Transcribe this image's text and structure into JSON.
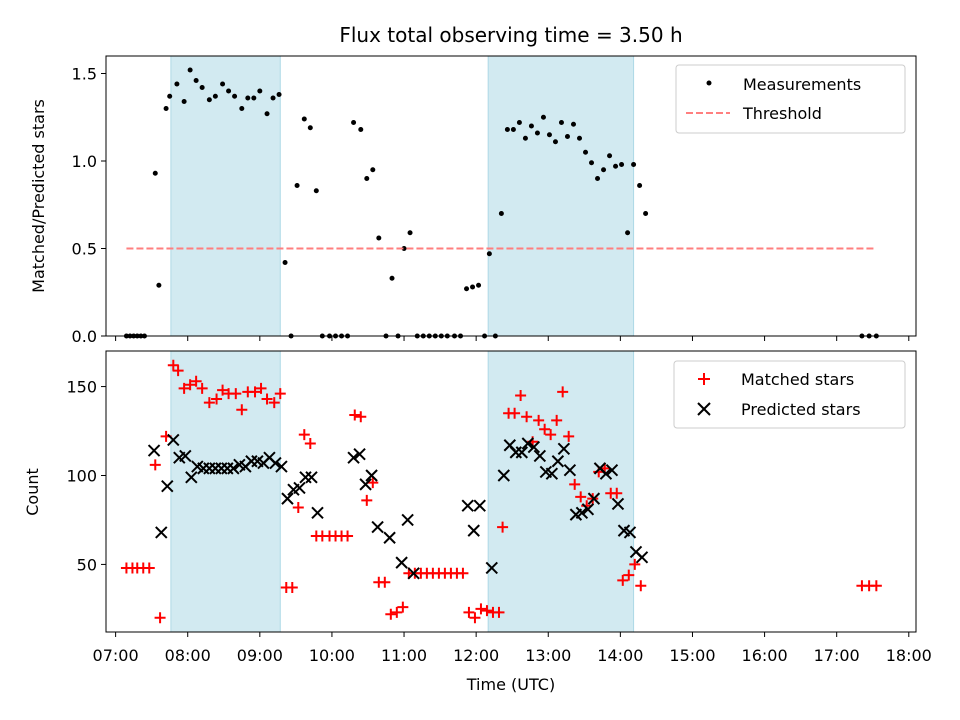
{
  "chart_data": [
    {
      "type": "scatter",
      "title": "Flux total observing time = 3.50 h",
      "xlabel": "",
      "ylabel": "Matched/Predicted stars",
      "xlim": [
        "06:52",
        "18:06"
      ],
      "ylim": [
        0,
        1.6
      ],
      "yticks": [
        0.0,
        0.5,
        1.0,
        1.5
      ],
      "ytick_labels": [
        "0.0",
        "0.5",
        "1.0",
        "1.5"
      ],
      "grid": false,
      "legend_position": "upper right",
      "shaded_intervals": [
        [
          "07:46",
          "09:17"
        ],
        [
          "12:10",
          "14:11"
        ]
      ],
      "shade_color": "#add8e6",
      "series": [
        {
          "name": "Measurements",
          "style": "dot",
          "color": "#000000",
          "points": [
            [
              "07:09",
              0
            ],
            [
              "07:12",
              0
            ],
            [
              "07:15",
              0
            ],
            [
              "07:18",
              0
            ],
            [
              "07:21",
              0
            ],
            [
              "07:24",
              0
            ],
            [
              "07:33",
              0.93
            ],
            [
              "07:36",
              0.29
            ],
            [
              "07:42",
              1.3
            ],
            [
              "07:45",
              1.37
            ],
            [
              "07:51",
              1.44
            ],
            [
              "07:57",
              1.34
            ],
            [
              "08:02",
              1.52
            ],
            [
              "08:07",
              1.46
            ],
            [
              "08:12",
              1.42
            ],
            [
              "08:18",
              1.35
            ],
            [
              "08:23",
              1.37
            ],
            [
              "08:29",
              1.44
            ],
            [
              "08:34",
              1.4
            ],
            [
              "08:39",
              1.37
            ],
            [
              "08:45",
              1.3
            ],
            [
              "08:50",
              1.36
            ],
            [
              "08:55",
              1.36
            ],
            [
              "09:00",
              1.4
            ],
            [
              "09:06",
              1.27
            ],
            [
              "09:11",
              1.36
            ],
            [
              "09:16",
              1.38
            ],
            [
              "09:21",
              0.42
            ],
            [
              "09:26",
              0
            ],
            [
              "09:31",
              0.86
            ],
            [
              "09:37",
              1.24
            ],
            [
              "09:42",
              1.19
            ],
            [
              "09:47",
              0.83
            ],
            [
              "09:52",
              0
            ],
            [
              "09:58",
              0
            ],
            [
              "10:03",
              0
            ],
            [
              "10:08",
              0
            ],
            [
              "10:13",
              0
            ],
            [
              "10:18",
              1.22
            ],
            [
              "10:24",
              1.18
            ],
            [
              "10:29",
              0.9
            ],
            [
              "10:34",
              0.95
            ],
            [
              "10:39",
              0.56
            ],
            [
              "10:45",
              0
            ],
            [
              "10:50",
              0.33
            ],
            [
              "10:55",
              0
            ],
            [
              "11:00",
              0.5
            ],
            [
              "11:05",
              0.59
            ],
            [
              "11:11",
              0
            ],
            [
              "11:16",
              0
            ],
            [
              "11:21",
              0
            ],
            [
              "11:26",
              0
            ],
            [
              "11:31",
              0
            ],
            [
              "11:36",
              0
            ],
            [
              "11:42",
              0
            ],
            [
              "11:47",
              0
            ],
            [
              "11:52",
              0.27
            ],
            [
              "11:57",
              0.28
            ],
            [
              "12:02",
              0.29
            ],
            [
              "12:07",
              0
            ],
            [
              "12:11",
              0.47
            ],
            [
              "12:16",
              0
            ],
            [
              "12:21",
              0.7
            ],
            [
              "12:26",
              1.18
            ],
            [
              "12:31",
              1.18
            ],
            [
              "12:36",
              1.22
            ],
            [
              "12:41",
              1.13
            ],
            [
              "12:46",
              1.2
            ],
            [
              "12:51",
              1.16
            ],
            [
              "12:56",
              1.25
            ],
            [
              "13:01",
              1.15
            ],
            [
              "13:06",
              1.11
            ],
            [
              "13:11",
              1.22
            ],
            [
              "13:16",
              1.14
            ],
            [
              "13:21",
              1.21
            ],
            [
              "13:26",
              1.13
            ],
            [
              "13:31",
              1.05
            ],
            [
              "13:36",
              0.99
            ],
            [
              "13:41",
              0.9
            ],
            [
              "13:46",
              0.95
            ],
            [
              "13:51",
              1.03
            ],
            [
              "13:56",
              0.97
            ],
            [
              "14:01",
              0.98
            ],
            [
              "14:06",
              0.59
            ],
            [
              "14:11",
              0.98
            ],
            [
              "14:16",
              0.86
            ],
            [
              "14:21",
              0.7
            ],
            [
              "17:21",
              0
            ],
            [
              "17:27",
              0
            ],
            [
              "17:33",
              0
            ]
          ]
        },
        {
          "name": "Threshold",
          "style": "dashed-line",
          "color": "#ff7f7f",
          "points": [
            [
              "07:09",
              0.5
            ],
            [
              "17:33",
              0.5
            ]
          ]
        }
      ]
    },
    {
      "type": "scatter",
      "title": "",
      "xlabel": "Time (UTC)",
      "ylabel": "Count",
      "xlim": [
        "06:52",
        "18:06"
      ],
      "ylim": [
        12,
        170
      ],
      "yticks": [
        50,
        100,
        150
      ],
      "ytick_labels": [
        "50",
        "100",
        "150"
      ],
      "xticks": [
        "07:00",
        "08:00",
        "09:00",
        "10:00",
        "11:00",
        "12:00",
        "13:00",
        "14:00",
        "15:00",
        "16:00",
        "17:00",
        "18:00"
      ],
      "xtick_labels": [
        "07:00",
        "08:00",
        "09:00",
        "10:00",
        "11:00",
        "12:00",
        "13:00",
        "14:00",
        "15:00",
        "16:00",
        "17:00",
        "18:00"
      ],
      "grid": false,
      "legend_position": "upper right",
      "shaded_intervals": [
        [
          "07:46",
          "09:17"
        ],
        [
          "12:10",
          "14:11"
        ]
      ],
      "shade_color": "#add8e6",
      "series": [
        {
          "name": "Matched stars",
          "style": "plus",
          "color": "#ff0000",
          "points": [
            [
              "07:09",
              48
            ],
            [
              "07:14",
              48
            ],
            [
              "07:18",
              48
            ],
            [
              "07:23",
              48
            ],
            [
              "07:28",
              48
            ],
            [
              "07:33",
              106
            ],
            [
              "07:37",
              20
            ],
            [
              "07:42",
              122
            ],
            [
              "07:48",
              162
            ],
            [
              "07:52",
              159
            ],
            [
              "07:57",
              149
            ],
            [
              "08:02",
              151
            ],
            [
              "08:07",
              153
            ],
            [
              "08:12",
              149
            ],
            [
              "08:18",
              141
            ],
            [
              "08:24",
              143
            ],
            [
              "08:29",
              148
            ],
            [
              "08:34",
              146
            ],
            [
              "08:40",
              146
            ],
            [
              "08:45",
              137
            ],
            [
              "08:50",
              147
            ],
            [
              "08:56",
              147
            ],
            [
              "09:01",
              149
            ],
            [
              "09:06",
              143
            ],
            [
              "09:12",
              141
            ],
            [
              "09:17",
              146
            ],
            [
              "09:22",
              37
            ],
            [
              "09:27",
              37
            ],
            [
              "09:32",
              82
            ],
            [
              "09:37",
              123
            ],
            [
              "09:42",
              118
            ],
            [
              "09:47",
              66
            ],
            [
              "09:52",
              66
            ],
            [
              "09:58",
              66
            ],
            [
              "10:03",
              66
            ],
            [
              "10:08",
              66
            ],
            [
              "10:13",
              66
            ],
            [
              "10:19",
              134
            ],
            [
              "10:24",
              133
            ],
            [
              "10:29",
              86
            ],
            [
              "10:34",
              96
            ],
            [
              "10:39",
              40
            ],
            [
              "10:44",
              40
            ],
            [
              "10:49",
              22
            ],
            [
              "10:54",
              23
            ],
            [
              "10:59",
              26
            ],
            [
              "11:04",
              45
            ],
            [
              "11:09",
              45
            ],
            [
              "11:14",
              45
            ],
            [
              "11:19",
              45
            ],
            [
              "11:24",
              45
            ],
            [
              "11:29",
              45
            ],
            [
              "11:34",
              45
            ],
            [
              "11:39",
              45
            ],
            [
              "11:44",
              45
            ],
            [
              "11:49",
              45
            ],
            [
              "11:54",
              23
            ],
            [
              "11:59",
              20
            ],
            [
              "12:04",
              25
            ],
            [
              "12:09",
              24
            ],
            [
              "12:14",
              23
            ],
            [
              "12:19",
              23
            ],
            [
              "12:22",
              71
            ],
            [
              "12:27",
              135
            ],
            [
              "12:32",
              135
            ],
            [
              "12:37",
              145
            ],
            [
              "12:42",
              133
            ],
            [
              "12:47",
              119
            ],
            [
              "12:52",
              131
            ],
            [
              "12:57",
              126
            ],
            [
              "13:02",
              123
            ],
            [
              "13:07",
              131
            ],
            [
              "13:12",
              147
            ],
            [
              "13:17",
              122
            ],
            [
              "13:22",
              95
            ],
            [
              "13:27",
              88
            ],
            [
              "13:32",
              83
            ],
            [
              "13:37",
              87
            ],
            [
              "13:42",
              102
            ],
            [
              "13:47",
              104
            ],
            [
              "13:52",
              90
            ],
            [
              "13:57",
              90
            ],
            [
              "14:02",
              41
            ],
            [
              "14:07",
              44
            ],
            [
              "14:12",
              50
            ],
            [
              "14:17",
              38
            ],
            [
              "17:21",
              38
            ],
            [
              "17:27",
              38
            ],
            [
              "17:33",
              38
            ]
          ]
        },
        {
          "name": "Predicted stars",
          "style": "x",
          "color": "#000000",
          "points": [
            [
              "07:32",
              114
            ],
            [
              "07:38",
              68
            ],
            [
              "07:43",
              94
            ],
            [
              "07:48",
              120
            ],
            [
              "07:53",
              110
            ],
            [
              "07:58",
              111
            ],
            [
              "08:03",
              99
            ],
            [
              "08:08",
              105
            ],
            [
              "08:13",
              104
            ],
            [
              "08:18",
              104
            ],
            [
              "08:23",
              104
            ],
            [
              "08:28",
              104
            ],
            [
              "08:33",
              104
            ],
            [
              "08:38",
              104
            ],
            [
              "08:43",
              106
            ],
            [
              "08:48",
              105
            ],
            [
              "08:53",
              108
            ],
            [
              "08:58",
              108
            ],
            [
              "09:03",
              107
            ],
            [
              "09:08",
              110
            ],
            [
              "09:13",
              107
            ],
            [
              "09:18",
              105
            ],
            [
              "09:23",
              87
            ],
            [
              "09:28",
              92
            ],
            [
              "09:33",
              93
            ],
            [
              "09:38",
              99
            ],
            [
              "09:43",
              99
            ],
            [
              "09:48",
              79
            ],
            [
              "10:18",
              110
            ],
            [
              "10:23",
              112
            ],
            [
              "10:28",
              95
            ],
            [
              "10:33",
              100
            ],
            [
              "10:38",
              71
            ],
            [
              "10:48",
              65
            ],
            [
              "10:58",
              51
            ],
            [
              "11:03",
              75
            ],
            [
              "11:08",
              45
            ],
            [
              "11:53",
              83
            ],
            [
              "11:58",
              69
            ],
            [
              "12:03",
              83
            ],
            [
              "12:13",
              48
            ],
            [
              "12:23",
              100
            ],
            [
              "12:28",
              117
            ],
            [
              "12:33",
              113
            ],
            [
              "12:38",
              113
            ],
            [
              "12:43",
              118
            ],
            [
              "12:48",
              116
            ],
            [
              "12:53",
              111
            ],
            [
              "12:58",
              102
            ],
            [
              "13:03",
              101
            ],
            [
              "13:08",
              108
            ],
            [
              "13:13",
              115
            ],
            [
              "13:18",
              103
            ],
            [
              "13:23",
              78
            ],
            [
              "13:28",
              79
            ],
            [
              "13:33",
              81
            ],
            [
              "13:38",
              87
            ],
            [
              "13:43",
              104
            ],
            [
              "13:48",
              101
            ],
            [
              "13:53",
              103
            ],
            [
              "13:58",
              84
            ],
            [
              "14:03",
              69
            ],
            [
              "14:08",
              68
            ],
            [
              "14:13",
              57
            ],
            [
              "14:18",
              54
            ]
          ]
        }
      ]
    }
  ]
}
